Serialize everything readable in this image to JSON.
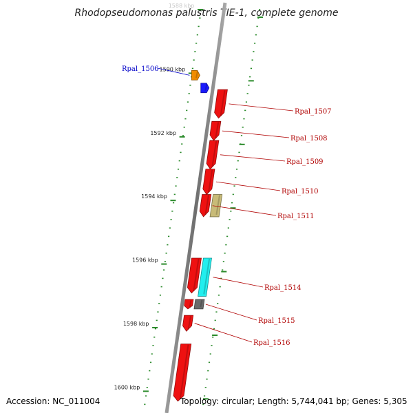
{
  "title": "Rhodopseudomonas palustris TIE-1, complete genome",
  "footer": {
    "accession": "Accession: NC_011004",
    "topology": "Topology: circular; Length: 5,744,041 bp; Genes: 5,305"
  },
  "colors": {
    "backbone": "#7a7a7a",
    "tick": "#2a8a2a",
    "label_red": "#b00000",
    "label_blue": "#0000c8",
    "gene_red": "#ee1111",
    "gene_orange": "#f08c00",
    "gene_blue": "#1a1aff",
    "gene_khaki": "#c8bb78",
    "gene_cyan": "#22eeee",
    "gene_gray": "#6a6a6a"
  },
  "scale_labels": [
    {
      "kbp": 1588,
      "text": "1588 kbp",
      "faint": true
    },
    {
      "kbp": 1590,
      "text": "1590 kbp"
    },
    {
      "kbp": 1592,
      "text": "1592 kbp"
    },
    {
      "kbp": 1594,
      "text": "1594 kbp"
    },
    {
      "kbp": 1596,
      "text": "1596 kbp"
    },
    {
      "kbp": 1598,
      "text": "1598 kbp"
    },
    {
      "kbp": 1600,
      "text": "1600 kbp"
    }
  ],
  "genes": [
    {
      "label": "Rpal_1506",
      "side": "left",
      "strand": "forward",
      "color": "orange",
      "start": 1590.0,
      "end": 1590.3
    },
    {
      "label": "",
      "side": "left",
      "strand": "forward",
      "color": "blue",
      "start": 1590.4,
      "end": 1590.7
    },
    {
      "label": "Rpal_1507",
      "side": "right",
      "strand": "reverse",
      "color": "red",
      "start": 1590.6,
      "end": 1591.5
    },
    {
      "label": "Rpal_1508",
      "side": "right",
      "strand": "reverse",
      "color": "red",
      "start": 1591.6,
      "end": 1592.2
    },
    {
      "label": "Rpal_1509",
      "side": "right",
      "strand": "reverse",
      "color": "red",
      "start": 1592.2,
      "end": 1593.1
    },
    {
      "label": "Rpal_1510",
      "side": "right",
      "strand": "reverse",
      "color": "red",
      "start": 1593.1,
      "end": 1593.9
    },
    {
      "label": "Rpal_1511",
      "side": "right",
      "strand": "reverse",
      "color": "red",
      "start": 1593.9,
      "end": 1594.6
    },
    {
      "label": "",
      "side": "right",
      "strand": "none",
      "color": "khaki",
      "start": 1593.9,
      "end": 1594.6
    },
    {
      "label": "",
      "side": "right",
      "strand": "reverse",
      "color": "red",
      "start": 1595.9,
      "end": 1597.0
    },
    {
      "label": "Rpal_1514",
      "side": "right",
      "strand": "none",
      "color": "cyan",
      "start": 1595.9,
      "end": 1597.1
    },
    {
      "label": "",
      "side": "right",
      "strand": "reverse",
      "color": "red",
      "start": 1597.2,
      "end": 1597.5
    },
    {
      "label": "Rpal_1515",
      "side": "right",
      "strand": "none",
      "color": "gray",
      "start": 1597.2,
      "end": 1597.5
    },
    {
      "label": "Rpal_1516",
      "side": "right",
      "strand": "reverse",
      "color": "red",
      "start": 1597.7,
      "end": 1598.2
    },
    {
      "label": "",
      "side": "right",
      "strand": "reverse",
      "color": "red",
      "start": 1598.6,
      "end": 1600.4
    }
  ]
}
